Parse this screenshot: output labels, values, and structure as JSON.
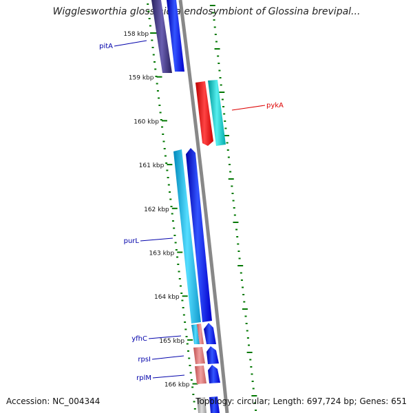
{
  "title": "Wigglesworthia glossinidia endosymbiont of Glossina brevipal...",
  "ticks": [
    "158 kbp",
    "159 kbp",
    "160 kbp",
    "161 kbp",
    "162 kbp",
    "163 kbp",
    "164 kbp",
    "165 kbp",
    "166 kbp"
  ],
  "gene_labels": [
    {
      "name": "pitA",
      "color": "#0000aa"
    },
    {
      "name": "pykA",
      "color": "#dd0000"
    },
    {
      "name": "purL",
      "color": "#0000aa"
    },
    {
      "name": "yfhC",
      "color": "#0000aa"
    },
    {
      "name": "rpsI",
      "color": "#0000aa"
    },
    {
      "name": "rplM",
      "color": "#0000aa"
    }
  ],
  "footer": {
    "accession": "Accession: NC_004344",
    "topology": "Topology: circular; Length: 697,724 bp; Genes: 651"
  },
  "colors": {
    "backbone": "#888888",
    "tick": "#007700",
    "navy_gene": "#3b2f7e",
    "blue_gene": "#0000ee",
    "cyan_gene": "#22bbee",
    "teal_gene": "#11cccc",
    "red_gene": "#ee0000",
    "pink_gene": "#e07878",
    "grey_gene": "#aaaaaa"
  }
}
